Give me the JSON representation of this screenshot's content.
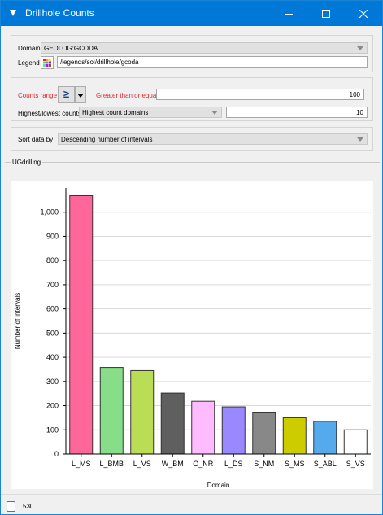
{
  "window": {
    "title": "Drillhole Counts"
  },
  "domain_row": {
    "label": "Domain",
    "value": "GEOLOG:GCODA"
  },
  "legend_row": {
    "label": "Legend",
    "value": "/legends/sol/drillhole/gcoda"
  },
  "counts_row": {
    "label": "Counts range",
    "operator": "≥",
    "condition": "Greater than or equal",
    "value": "100"
  },
  "highlow_row": {
    "label": "Highest/lowest counts",
    "value": "Highest count domains",
    "count": "10"
  },
  "sort_row": {
    "label": "Sort data by",
    "value": "Descending number of intervals"
  },
  "group": {
    "label": "UGdrilling"
  },
  "status": {
    "text": "530"
  },
  "colors": {
    "titlebar": "#0078d7",
    "accent_red": "#e4262d"
  },
  "chart_data": {
    "type": "bar",
    "xlabel": "Domain",
    "ylabel": "Number of intervals",
    "ylim": [
      0,
      1100
    ],
    "yticks": [
      0,
      100,
      200,
      300,
      400,
      500,
      600,
      700,
      800,
      900,
      1000
    ],
    "ytick_labels": [
      "0",
      "100",
      "200",
      "300",
      "400",
      "500",
      "600",
      "700",
      "800",
      "900",
      "1,000"
    ],
    "grid": true,
    "categories": [
      "L_MS",
      "L_BMB",
      "L_VS",
      "W_BM",
      "O_NR",
      "L_DS",
      "S_NM",
      "S_MS",
      "S_ABL",
      "S_VS"
    ],
    "values": [
      1068,
      358,
      345,
      252,
      218,
      195,
      170,
      150,
      135,
      100
    ],
    "colors": [
      "#ff6699",
      "#88dd88",
      "#bbdd55",
      "#5f5f5f",
      "#ffbbff",
      "#9988ff",
      "#888888",
      "#cccc00",
      "#55aaee",
      "#ffffff"
    ]
  }
}
